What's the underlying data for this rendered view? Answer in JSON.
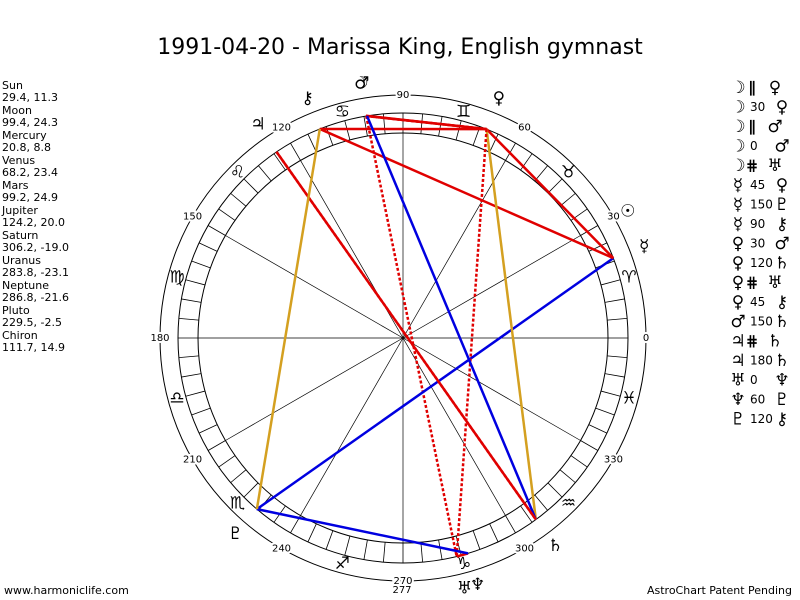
{
  "title": "1991-04-20 - Marissa King, English gymnast",
  "planets": [
    {
      "name": "Sun",
      "glyph": "☉",
      "position": "29.4, 11.3"
    },
    {
      "name": "Moon",
      "glyph": "☽",
      "position": "99.4, 24.3"
    },
    {
      "name": "Mercury",
      "glyph": "☿",
      "position": "20.8, 8.8"
    },
    {
      "name": "Venus",
      "glyph": "♀",
      "position": "68.2, 23.4"
    },
    {
      "name": "Mars",
      "glyph": "♂",
      "position": "99.2, 24.9"
    },
    {
      "name": "Jupiter",
      "glyph": "♃",
      "position": "124.2, 20.0"
    },
    {
      "name": "Saturn",
      "glyph": "♄",
      "position": "306.2, -19.0"
    },
    {
      "name": "Uranus",
      "glyph": "♅",
      "position": "283.8, -23.1"
    },
    {
      "name": "Neptune",
      "glyph": "♆",
      "position": "286.8, -21.6"
    },
    {
      "name": "Pluto",
      "glyph": "♇",
      "position": "229.5, -2.5"
    },
    {
      "name": "Chiron",
      "glyph": "⚷",
      "position": "111.7, 14.9"
    }
  ],
  "aspects": [
    {
      "planet1": "☽",
      "aspect": "∥",
      "planet2": "♀",
      "color": "#e00000",
      "style": "dotted"
    },
    {
      "planet1": "☽",
      "aspect": "30",
      "planet2": "♀",
      "color": "#e00000",
      "style": "solid"
    },
    {
      "planet1": "☽",
      "aspect": "∥",
      "planet2": "♂",
      "color": "#e00000",
      "style": "dotted"
    },
    {
      "planet1": "☽",
      "aspect": "0",
      "planet2": "♂",
      "color": "#e00000",
      "style": "solid"
    },
    {
      "planet1": "☽",
      "aspect": "⋕",
      "planet2": "♅",
      "color": "#e00000",
      "style": "dotted"
    },
    {
      "planet1": "☿",
      "aspect": "45",
      "planet2": "♀",
      "color": "#e00000",
      "style": "solid"
    },
    {
      "planet1": "☿",
      "aspect": "150",
      "planet2": "♇",
      "color": "#0000e0",
      "style": "solid"
    },
    {
      "planet1": "☿",
      "aspect": "90",
      "planet2": "⚷",
      "color": "#e00000",
      "style": "solid"
    },
    {
      "planet1": "♀",
      "aspect": "30",
      "planet2": "♂",
      "color": "#e00000",
      "style": "solid"
    },
    {
      "planet1": "♀",
      "aspect": "120",
      "planet2": "♄",
      "color": "#d4a020",
      "style": "solid"
    },
    {
      "planet1": "♀",
      "aspect": "⋕",
      "planet2": "♅",
      "color": "#e00000",
      "style": "dotted"
    },
    {
      "planet1": "♀",
      "aspect": "45",
      "planet2": "⚷",
      "color": "#e00000",
      "style": "solid"
    },
    {
      "planet1": "♂",
      "aspect": "150",
      "planet2": "♄",
      "color": "#0000e0",
      "style": "solid"
    },
    {
      "planet1": "♃",
      "aspect": "⋕",
      "planet2": "♄",
      "color": "#e00000",
      "style": "dotted"
    },
    {
      "planet1": "♃",
      "aspect": "180",
      "planet2": "♄",
      "color": "#e00000",
      "style": "solid"
    },
    {
      "planet1": "♅",
      "aspect": "0",
      "planet2": "♆",
      "color": "#e00000",
      "style": "solid"
    },
    {
      "planet1": "♆",
      "aspect": "60",
      "planet2": "♇",
      "color": "#0000e0",
      "style": "solid"
    },
    {
      "planet1": "♇",
      "aspect": "120",
      "planet2": "⚷",
      "color": "#d4a020",
      "style": "solid"
    }
  ],
  "wheel": {
    "degree_labels": [
      "0",
      "30",
      "60",
      "90",
      "120",
      "150",
      "180",
      "210",
      "240",
      "270",
      "300",
      "330"
    ],
    "signs": [
      "♈",
      "♉",
      "♊",
      "♋",
      "♌",
      "♍",
      "♎",
      "♏",
      "♐",
      "♑",
      "♒",
      "♓"
    ],
    "marker_label": "277"
  },
  "footer": {
    "left": "www.harmoniclife.com",
    "right": "AstroChart Patent Pending"
  }
}
